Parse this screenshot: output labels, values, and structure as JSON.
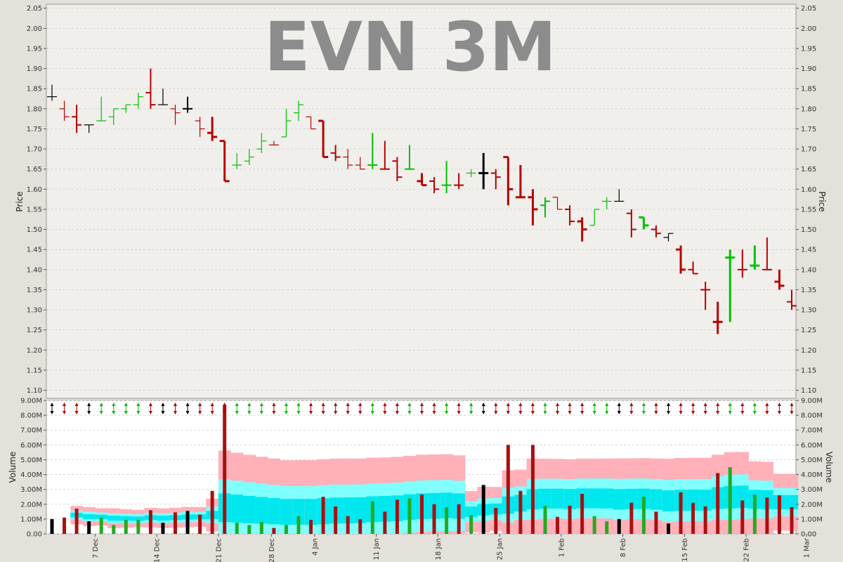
{
  "colors": {
    "up": "#00c000",
    "down": "#b80000",
    "flat": "#000000",
    "band_outer": "#ffb0b8",
    "band_inner": "#80ffff",
    "band_core": "#00e8ee"
  },
  "chart_data": [
    {
      "type": "ohlc",
      "title": "EVN 3M",
      "ylabel": "Price",
      "ylim": [
        1.08,
        2.06
      ],
      "yticks": [
        "1.10",
        "1.15",
        "1.20",
        "1.25",
        "1.30",
        "1.35",
        "1.40",
        "1.45",
        "1.50",
        "1.55",
        "1.60",
        "1.65",
        "1.70",
        "1.75",
        "1.80",
        "1.85",
        "1.90",
        "1.95",
        "2.00",
        "2.05"
      ],
      "grid": true,
      "bars": [
        {
          "date": "2 Dec",
          "o": 1.83,
          "h": 1.86,
          "l": 1.82,
          "c": 1.83,
          "dir": "flat",
          "vol": 1.0
        },
        {
          "date": "3 Dec",
          "o": 1.8,
          "h": 1.82,
          "l": 1.77,
          "c": 1.78,
          "dir": "down",
          "vol": 1.1
        },
        {
          "date": "4 Dec",
          "o": 1.78,
          "h": 1.81,
          "l": 1.74,
          "c": 1.76,
          "dir": "down",
          "vol": 1.7
        },
        {
          "date": "5 Dec",
          "o": 1.76,
          "h": 1.76,
          "l": 1.74,
          "c": 1.76,
          "dir": "flat",
          "vol": 0.85
        },
        {
          "date": "8 Dec",
          "o": 1.77,
          "h": 1.83,
          "l": 1.77,
          "c": 1.77,
          "dir": "up",
          "vol": 1.1
        },
        {
          "date": "9 Dec",
          "o": 1.78,
          "h": 1.8,
          "l": 1.76,
          "c": 1.8,
          "dir": "up",
          "vol": 0.6
        },
        {
          "date": "10 Dec",
          "o": 1.8,
          "h": 1.81,
          "l": 1.79,
          "c": 1.81,
          "dir": "up",
          "vol": 0.95
        },
        {
          "date": "11 Dec",
          "o": 1.81,
          "h": 1.84,
          "l": 1.8,
          "c": 1.83,
          "dir": "up",
          "vol": 0.95
        },
        {
          "date": "12 Dec",
          "o": 1.84,
          "h": 1.9,
          "l": 1.8,
          "c": 1.81,
          "dir": "down",
          "vol": 1.6
        },
        {
          "date": "15 Dec",
          "o": 1.81,
          "h": 1.85,
          "l": 1.81,
          "c": 1.81,
          "dir": "flat",
          "vol": 0.75
        },
        {
          "date": "16 Dec",
          "o": 1.8,
          "h": 1.81,
          "l": 1.76,
          "c": 1.79,
          "dir": "down",
          "vol": 1.45
        },
        {
          "date": "17 Dec",
          "o": 1.8,
          "h": 1.83,
          "l": 1.79,
          "c": 1.8,
          "dir": "flat",
          "vol": 1.55
        },
        {
          "date": "18 Dec",
          "o": 1.77,
          "h": 1.78,
          "l": 1.73,
          "c": 1.75,
          "dir": "down",
          "vol": 1.3
        },
        {
          "date": "19 Dec",
          "o": 1.74,
          "h": 1.78,
          "l": 1.72,
          "c": 1.73,
          "dir": "down",
          "vol": 2.9
        },
        {
          "date": "22 Dec",
          "o": 1.72,
          "h": 1.72,
          "l": 1.62,
          "c": 1.62,
          "dir": "down",
          "vol": 8.7
        },
        {
          "date": "23 Dec",
          "o": 1.66,
          "h": 1.69,
          "l": 1.65,
          "c": 1.66,
          "dir": "up",
          "vol": 0.75
        },
        {
          "date": "24 Dec",
          "o": 1.67,
          "h": 1.7,
          "l": 1.66,
          "c": 1.68,
          "dir": "up",
          "vol": 0.6
        },
        {
          "date": "26 Dec",
          "o": 1.7,
          "h": 1.74,
          "l": 1.69,
          "c": 1.72,
          "dir": "up",
          "vol": 0.8
        },
        {
          "date": "29 Dec",
          "o": 1.71,
          "h": 1.72,
          "l": 1.71,
          "c": 1.71,
          "dir": "down",
          "vol": 0.4
        },
        {
          "date": "30 Dec",
          "o": 1.73,
          "h": 1.8,
          "l": 1.73,
          "c": 1.77,
          "dir": "up",
          "vol": 0.6
        },
        {
          "date": "31 Dec",
          "o": 1.79,
          "h": 1.82,
          "l": 1.77,
          "c": 1.81,
          "dir": "up",
          "vol": 1.2
        },
        {
          "date": "2 Jan",
          "o": 1.78,
          "h": 1.78,
          "l": 1.75,
          "c": 1.75,
          "dir": "down",
          "vol": 0.95
        },
        {
          "date": "5 Jan",
          "o": 1.77,
          "h": 1.77,
          "l": 1.68,
          "c": 1.68,
          "dir": "down",
          "vol": 2.5
        },
        {
          "date": "6 Jan",
          "o": 1.69,
          "h": 1.71,
          "l": 1.67,
          "c": 1.68,
          "dir": "down",
          "vol": 1.85
        },
        {
          "date": "7 Jan",
          "o": 1.68,
          "h": 1.7,
          "l": 1.65,
          "c": 1.66,
          "dir": "down",
          "vol": 1.2
        },
        {
          "date": "8 Jan",
          "o": 1.66,
          "h": 1.68,
          "l": 1.65,
          "c": 1.65,
          "dir": "down",
          "vol": 1.0
        },
        {
          "date": "9 Jan",
          "o": 1.66,
          "h": 1.74,
          "l": 1.65,
          "c": 1.66,
          "dir": "up",
          "vol": 2.2
        },
        {
          "date": "12 Jan",
          "o": 1.65,
          "h": 1.72,
          "l": 1.65,
          "c": 1.65,
          "dir": "down",
          "vol": 1.5
        },
        {
          "date": "13 Jan",
          "o": 1.67,
          "h": 1.68,
          "l": 1.62,
          "c": 1.63,
          "dir": "down",
          "vol": 2.3
        },
        {
          "date": "14 Jan",
          "o": 1.65,
          "h": 1.71,
          "l": 1.65,
          "c": 1.65,
          "dir": "up",
          "vol": 2.4
        },
        {
          "date": "15 Jan",
          "o": 1.62,
          "h": 1.64,
          "l": 1.61,
          "c": 1.61,
          "dir": "down",
          "vol": 2.65
        },
        {
          "date": "16 Jan",
          "o": 1.62,
          "h": 1.63,
          "l": 1.59,
          "c": 1.6,
          "dir": "down",
          "vol": 2.0
        },
        {
          "date": "19 Jan",
          "o": 1.61,
          "h": 1.67,
          "l": 1.59,
          "c": 1.61,
          "dir": "up",
          "vol": 1.8
        },
        {
          "date": "20 Jan",
          "o": 1.61,
          "h": 1.64,
          "l": 1.6,
          "c": 1.61,
          "dir": "down",
          "vol": 2.0
        },
        {
          "date": "21 Jan",
          "o": 1.64,
          "h": 1.65,
          "l": 1.63,
          "c": 1.64,
          "dir": "up",
          "vol": 1.25
        },
        {
          "date": "22 Jan",
          "o": 1.64,
          "h": 1.69,
          "l": 1.6,
          "c": 1.64,
          "dir": "flat",
          "vol": 3.3
        },
        {
          "date": "23 Jan",
          "o": 1.64,
          "h": 1.65,
          "l": 1.6,
          "c": 1.63,
          "dir": "down",
          "vol": 1.75
        },
        {
          "date": "26 Jan",
          "o": 1.68,
          "h": 1.68,
          "l": 1.56,
          "c": 1.6,
          "dir": "down",
          "vol": 6.0
        },
        {
          "date": "27 Jan",
          "o": 1.58,
          "h": 1.66,
          "l": 1.58,
          "c": 1.58,
          "dir": "down",
          "vol": 2.9
        },
        {
          "date": "28 Jan",
          "o": 1.58,
          "h": 1.6,
          "l": 1.51,
          "c": 1.55,
          "dir": "down",
          "vol": 6.0
        },
        {
          "date": "29 Jan",
          "o": 1.56,
          "h": 1.58,
          "l": 1.53,
          "c": 1.57,
          "dir": "up",
          "vol": 1.9
        },
        {
          "date": "30 Jan",
          "o": 1.58,
          "h": 1.58,
          "l": 1.55,
          "c": 1.55,
          "dir": "down",
          "vol": 1.15
        },
        {
          "date": "2 Feb",
          "o": 1.55,
          "h": 1.56,
          "l": 1.51,
          "c": 1.52,
          "dir": "down",
          "vol": 1.9
        },
        {
          "date": "3 Feb",
          "o": 1.52,
          "h": 1.53,
          "l": 1.47,
          "c": 1.5,
          "dir": "down",
          "vol": 2.7
        },
        {
          "date": "4 Feb",
          "o": 1.51,
          "h": 1.55,
          "l": 1.51,
          "c": 1.55,
          "dir": "up",
          "vol": 1.2
        },
        {
          "date": "5 Feb",
          "o": 1.57,
          "h": 1.58,
          "l": 1.55,
          "c": 1.57,
          "dir": "up",
          "vol": 0.85
        },
        {
          "date": "6 Feb",
          "o": 1.57,
          "h": 1.6,
          "l": 1.57,
          "c": 1.57,
          "dir": "flat",
          "vol": 1.0
        },
        {
          "date": "9 Feb",
          "o": 1.54,
          "h": 1.55,
          "l": 1.48,
          "c": 1.5,
          "dir": "down",
          "vol": 2.1
        },
        {
          "date": "10 Feb",
          "o": 1.53,
          "h": 1.53,
          "l": 1.5,
          "c": 1.51,
          "dir": "up",
          "vol": 2.5
        },
        {
          "date": "11 Feb",
          "o": 1.5,
          "h": 1.51,
          "l": 1.48,
          "c": 1.49,
          "dir": "down",
          "vol": 1.5
        },
        {
          "date": "12 Feb",
          "o": 1.48,
          "h": 1.49,
          "l": 1.47,
          "c": 1.49,
          "dir": "flat",
          "vol": 0.7
        },
        {
          "date": "13 Feb",
          "o": 1.45,
          "h": 1.46,
          "l": 1.39,
          "c": 1.4,
          "dir": "down",
          "vol": 2.8
        },
        {
          "date": "16 Feb",
          "o": 1.4,
          "h": 1.42,
          "l": 1.39,
          "c": 1.39,
          "dir": "down",
          "vol": 2.1
        },
        {
          "date": "17 Feb",
          "o": 1.35,
          "h": 1.37,
          "l": 1.3,
          "c": 1.35,
          "dir": "down",
          "vol": 1.85
        },
        {
          "date": "18 Feb",
          "o": 1.27,
          "h": 1.32,
          "l": 1.24,
          "c": 1.27,
          "dir": "down",
          "vol": 4.1
        },
        {
          "date": "19 Feb",
          "o": 1.43,
          "h": 1.45,
          "l": 1.27,
          "c": 1.43,
          "dir": "up",
          "vol": 4.5
        },
        {
          "date": "20 Feb",
          "o": 1.4,
          "h": 1.45,
          "l": 1.38,
          "c": 1.4,
          "dir": "down",
          "vol": 2.25
        },
        {
          "date": "23 Feb",
          "o": 1.41,
          "h": 1.46,
          "l": 1.4,
          "c": 1.41,
          "dir": "up",
          "vol": 2.65
        },
        {
          "date": "24 Feb",
          "o": 1.4,
          "h": 1.48,
          "l": 1.4,
          "c": 1.4,
          "dir": "down",
          "vol": 2.45
        },
        {
          "date": "25 Feb",
          "o": 1.37,
          "h": 1.4,
          "l": 1.35,
          "c": 1.36,
          "dir": "down",
          "vol": 2.6
        },
        {
          "date": "26 Feb",
          "o": 1.32,
          "h": 1.35,
          "l": 1.3,
          "c": 1.31,
          "dir": "down",
          "vol": 1.8
        }
      ]
    },
    {
      "type": "bar",
      "ylabel": "Volume",
      "ylim": [
        0,
        9
      ],
      "yticks": [
        "0.00",
        "1.00M",
        "2.00M",
        "3.00M",
        "4.00M",
        "5.00M",
        "6.00M",
        "7.00M",
        "8.00M",
        "9.00M"
      ],
      "xticks": [
        "7 Dec",
        "14 Dec",
        "21 Dec",
        "28 Dec",
        "4 Jan",
        "11 Jan",
        "18 Jan",
        "25 Jan",
        "1 Feb",
        "8 Feb",
        "15 Feb",
        "22 Feb",
        "1 Mar"
      ],
      "grid": true,
      "band_start": 2
    }
  ]
}
